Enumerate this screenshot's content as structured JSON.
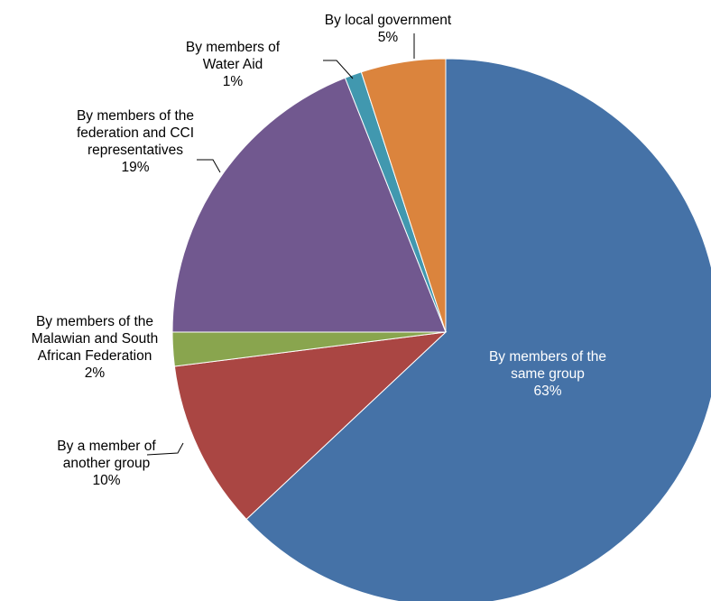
{
  "chart_data": {
    "type": "pie",
    "title": "",
    "start_angle_deg": 0,
    "direction": "clockwise",
    "slices": [
      {
        "label_lines": [
          "By members of the",
          "same group"
        ],
        "value": 63,
        "value_label": "63%",
        "color": "#4572A7",
        "label_position": "inside"
      },
      {
        "label_lines": [
          "By a member of",
          "another group"
        ],
        "value": 10,
        "value_label": "10%",
        "color": "#AA4643",
        "label_position": "outside"
      },
      {
        "label_lines": [
          "By members of the",
          "Malawian and South",
          "African Federation"
        ],
        "value": 2,
        "value_label": "2%",
        "color": "#89A54E",
        "label_position": "outside"
      },
      {
        "label_lines": [
          "By members of the",
          "federation and CCI",
          "representatives"
        ],
        "value": 19,
        "value_label": "19%",
        "color": "#71588F",
        "label_position": "outside"
      },
      {
        "label_lines": [
          "By members of",
          "Water Aid"
        ],
        "value": 1,
        "value_label": "1%",
        "color": "#4198AF",
        "label_position": "outside"
      },
      {
        "label_lines": [
          "By local government"
        ],
        "value": 5,
        "value_label": "5%",
        "color": "#DB843D",
        "label_position": "outside"
      }
    ]
  }
}
